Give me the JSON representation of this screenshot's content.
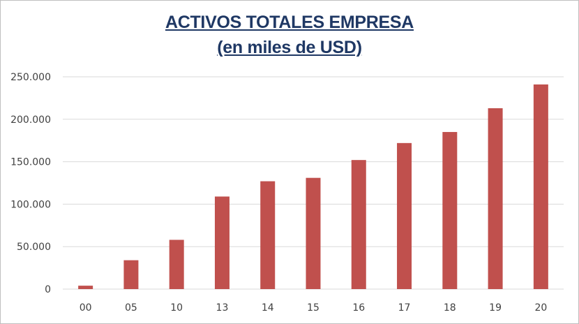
{
  "chart_data": {
    "type": "bar",
    "title": "ACTIVOS TOTALES EMPRESA",
    "subtitle": "(en miles de USD)",
    "xlabel": "",
    "ylabel": "",
    "categories": [
      "00",
      "05",
      "10",
      "13",
      "14",
      "15",
      "16",
      "17",
      "18",
      "19",
      "20"
    ],
    "values": [
      4000,
      34000,
      58000,
      109000,
      127000,
      131000,
      152000,
      172000,
      185000,
      213000,
      241000
    ],
    "ylim": [
      0,
      250000
    ],
    "yticks": [
      0,
      50000,
      100000,
      150000,
      200000,
      250000
    ],
    "ytick_labels": [
      "0",
      "50.000",
      "100.000",
      "150.000",
      "200.000",
      "250.000"
    ],
    "grid": true,
    "legend": "none",
    "bar_color": "#c0504d",
    "grid_color": "#d9d9d9"
  }
}
